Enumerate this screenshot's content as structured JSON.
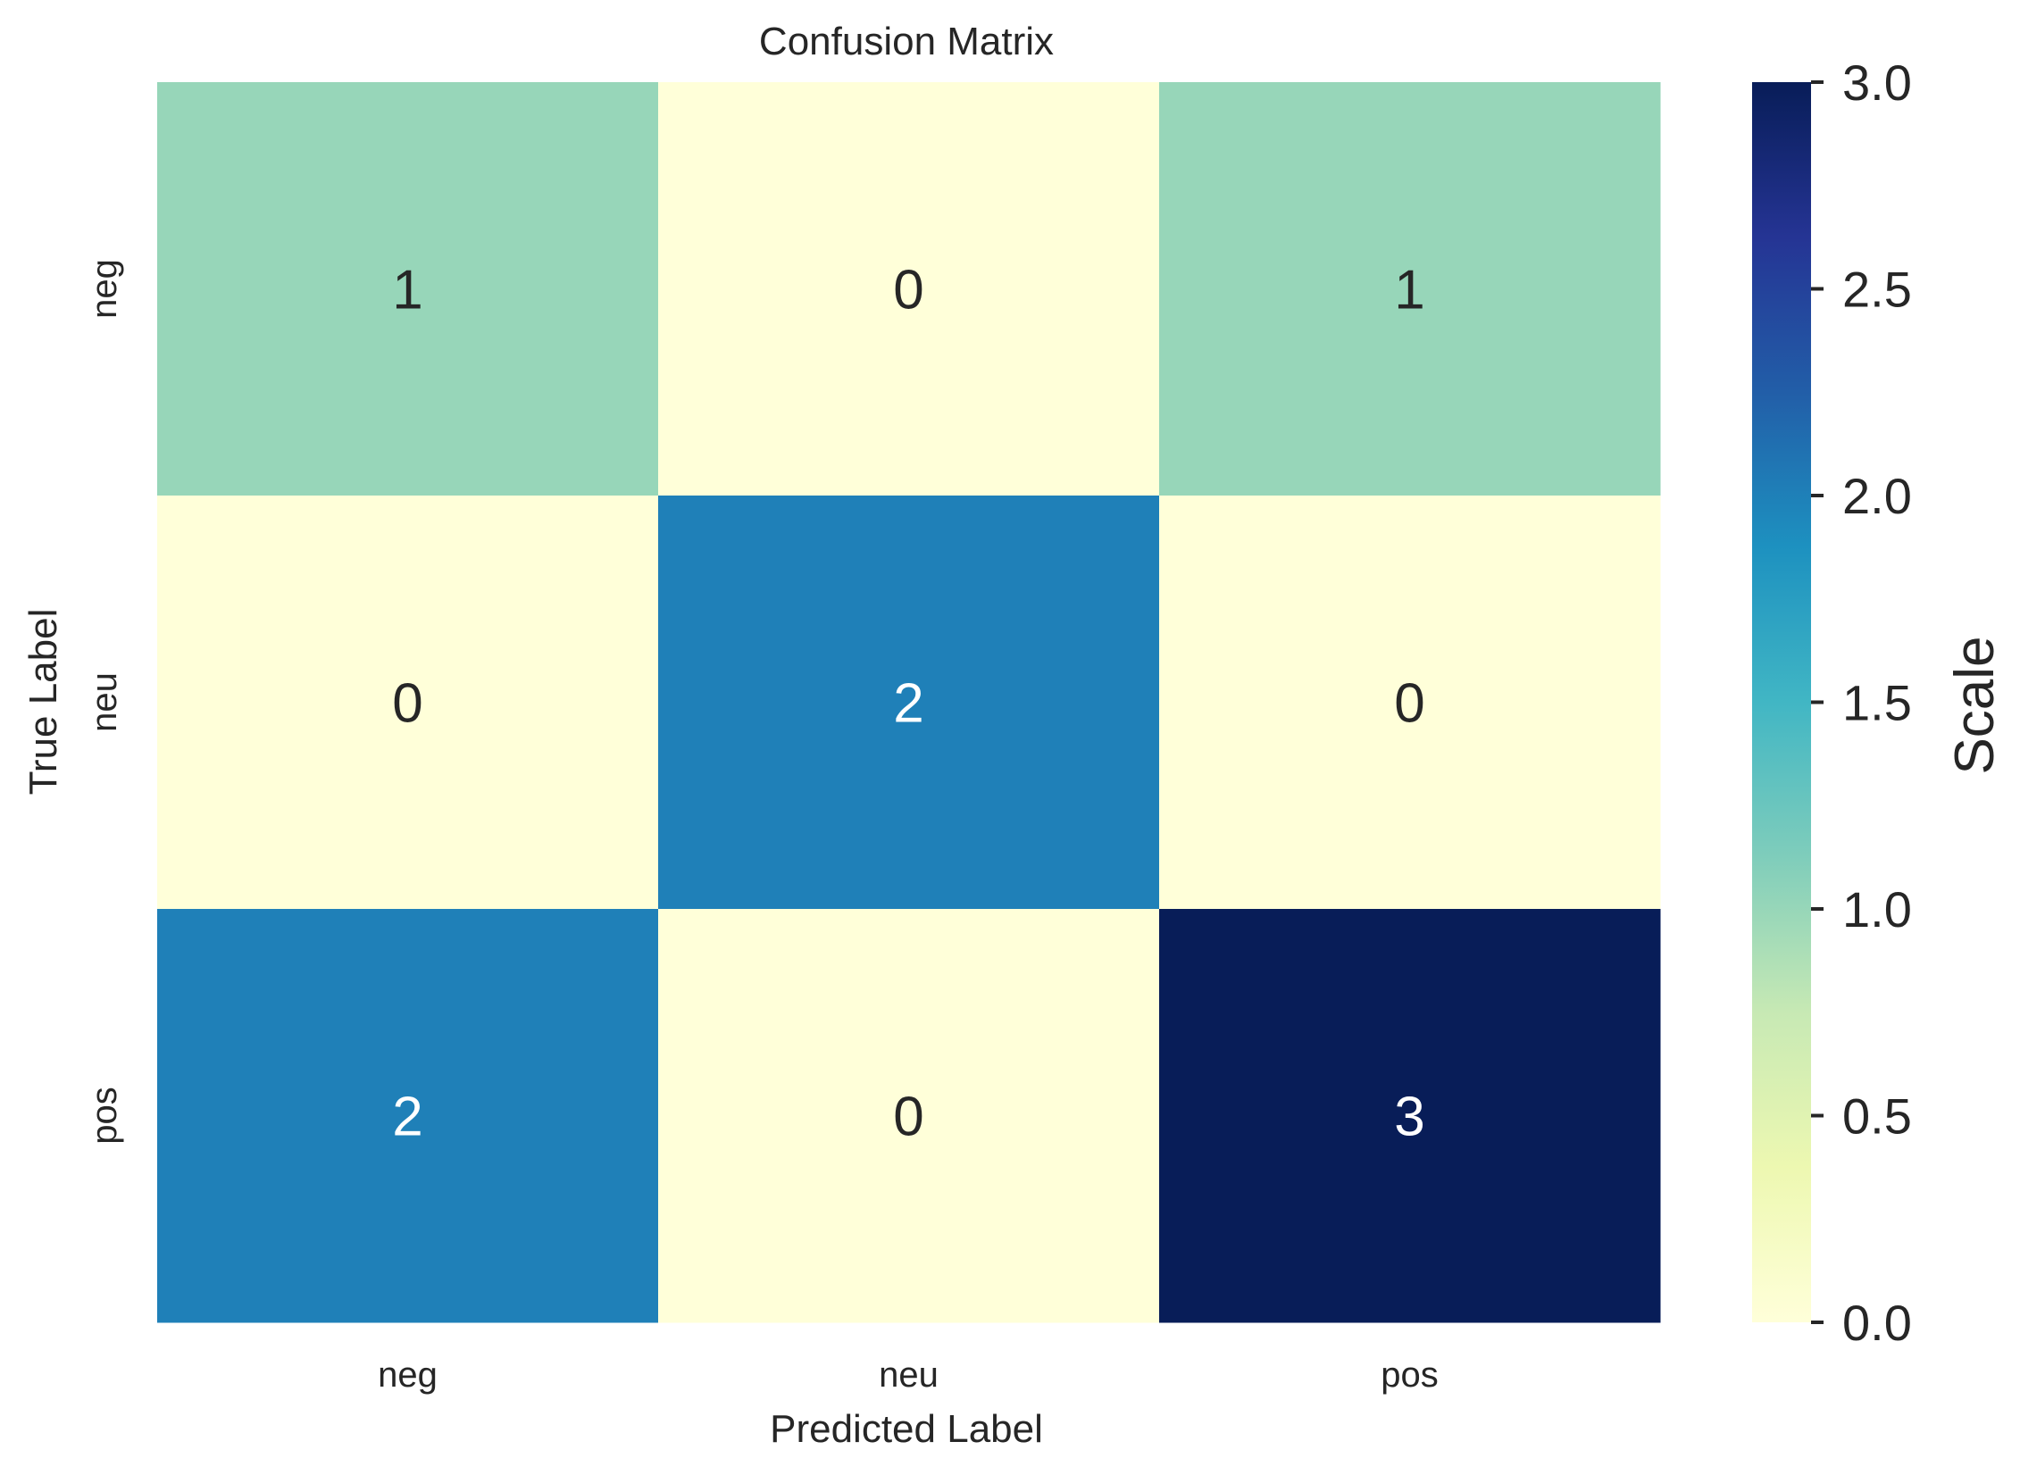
{
  "chart_data": {
    "type": "heatmap",
    "title": "Confusion Matrix",
    "xlabel": "Predicted Label",
    "ylabel": "True Label",
    "x_categories": [
      "neg",
      "neu",
      "pos"
    ],
    "y_categories": [
      "neg",
      "neu",
      "pos"
    ],
    "values": [
      [
        1,
        0,
        1
      ],
      [
        0,
        2,
        0
      ],
      [
        2,
        0,
        3
      ]
    ],
    "colorbar": {
      "label": "Scale",
      "range": [
        0,
        3
      ],
      "ticks": [
        "0.0",
        "0.5",
        "1.0",
        "1.5",
        "2.0",
        "2.5",
        "3.0"
      ],
      "colormap": [
        "#ffffd9",
        "#edf8b1",
        "#c7e9b4",
        "#7fcdbb",
        "#41b6c4",
        "#1d91c0",
        "#225ea8",
        "#253494",
        "#081d58"
      ]
    },
    "annotation_colors": {
      "dark_text": "#262626",
      "light_text": "#ffffff"
    }
  }
}
